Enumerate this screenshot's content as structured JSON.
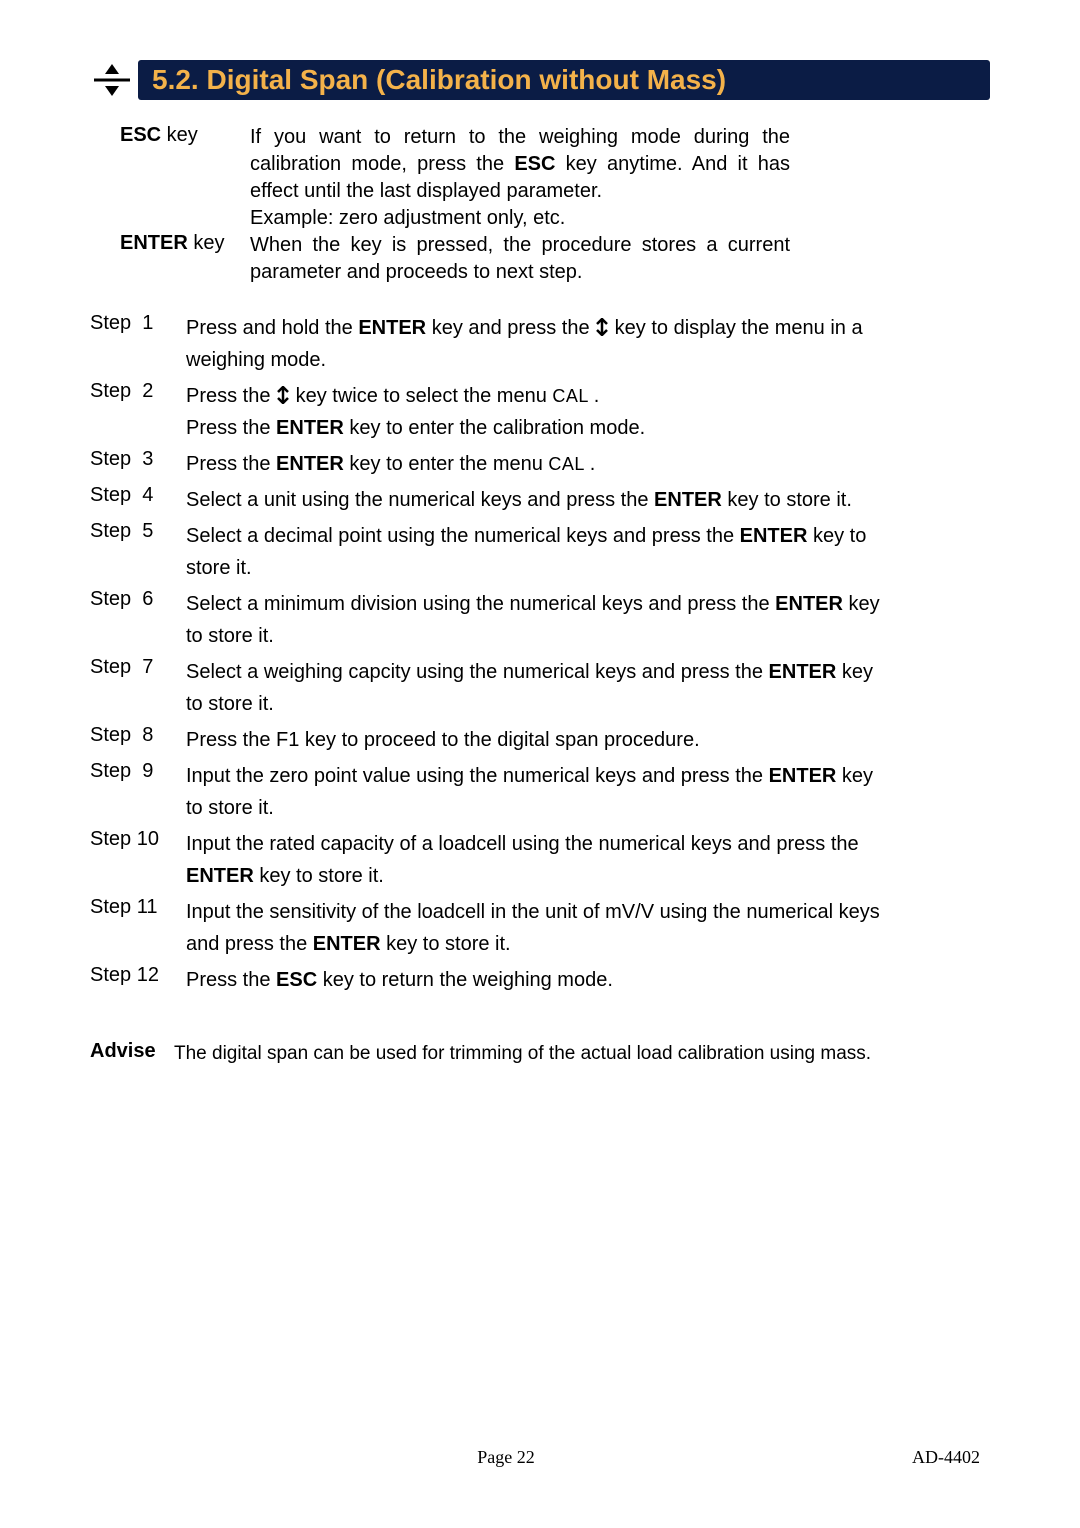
{
  "title": {
    "bg_color": "#0b1c45",
    "text_color": "#f4b24a",
    "text": "5.2. Digital Span (Calibration without Mass)"
  },
  "icon": {
    "stroke": "#000000",
    "fill": "#000000"
  },
  "keydefs": [
    {
      "label_prefix": "ESC",
      "label_suffix": " key",
      "body_parts": [
        {
          "t": "If you want to return to the weighing mode during the calibration mode, press the "
        },
        {
          "t": "ESC",
          "bold": true
        },
        {
          "t": " key anytime. And it has effect until the last displayed parameter."
        }
      ],
      "body_line2": "Example: zero adjustment only, etc."
    },
    {
      "label_prefix": "ENTER",
      "label_suffix": " key",
      "body_parts": [
        {
          "t": "When the key is pressed, the procedure stores a current parameter and proceeds to next step."
        }
      ]
    }
  ],
  "steps": [
    {
      "n": "Step  1",
      "parts": [
        {
          "t": "Press and hold the "
        },
        {
          "t": "ENTER",
          "bold": true
        },
        {
          "t": " key and press the "
        },
        {
          "arrow": true
        },
        {
          "t": " key to display the menu in a weighing mode."
        }
      ]
    },
    {
      "n": "Step  2",
      "parts": [
        {
          "t": "Press the "
        },
        {
          "arrow": true
        },
        {
          "t": " key twice to select the menu "
        },
        {
          "t": " CAL ",
          "cal": true
        },
        {
          "t": "."
        }
      ],
      "line2parts": [
        {
          "t": "Press the "
        },
        {
          "t": "ENTER",
          "bold": true
        },
        {
          "t": " key to enter the calibration mode."
        }
      ]
    },
    {
      "n": "Step  3",
      "parts": [
        {
          "t": "Press the "
        },
        {
          "t": "ENTER",
          "bold": true
        },
        {
          "t": " key to enter the menu "
        },
        {
          "t": " CAL ",
          "cal": true
        },
        {
          "t": "."
        }
      ]
    },
    {
      "n": "Step  4",
      "parts": [
        {
          "t": "Select a unit using the numerical keys and press the "
        },
        {
          "t": "ENTER",
          "bold": true
        },
        {
          "t": " key to store it."
        }
      ]
    },
    {
      "n": "Step  5",
      "parts": [
        {
          "t": "Select a decimal point using the numerical keys and press the "
        },
        {
          "t": "ENTER",
          "bold": true
        },
        {
          "t": " key to store it."
        }
      ]
    },
    {
      "n": "Step  6",
      "parts": [
        {
          "t": "Select a minimum division using the numerical keys and press the "
        },
        {
          "t": "ENTER",
          "bold": true
        },
        {
          "t": " key to store it."
        }
      ]
    },
    {
      "n": "Step  7",
      "parts": [
        {
          "t": "Select a weighing capcity using the numerical keys and press the "
        },
        {
          "t": "ENTER",
          "bold": true
        },
        {
          "t": " key to store it."
        }
      ]
    },
    {
      "n": "Step  8",
      "parts": [
        {
          "t": "Press the F1 key to proceed to the digital span procedure."
        }
      ]
    },
    {
      "n": "Step  9",
      "parts": [
        {
          "t": "Input the zero point value using the numerical keys and press the "
        },
        {
          "t": "ENTER",
          "bold": true
        },
        {
          "t": " key to store it."
        }
      ]
    },
    {
      "n": "Step 10",
      "parts": [
        {
          "t": "Input the rated capacity of a loadcell using the numerical keys and press the "
        },
        {
          "t": "ENTER",
          "bold": true
        },
        {
          "t": " key to store it."
        }
      ]
    },
    {
      "n": "Step 11",
      "parts": [
        {
          "t": "Input the sensitivity of the loadcell in the unit of mV/V using the numerical keys and press the "
        },
        {
          "t": "ENTER",
          "bold": true
        },
        {
          "t": " key to store it."
        }
      ]
    },
    {
      "n": "Step 12",
      "parts": [
        {
          "t": "Press the "
        },
        {
          "t": "ESC",
          "bold": true
        },
        {
          "t": " key to return the weighing mode."
        }
      ]
    }
  ],
  "advise": {
    "label": "Advise",
    "body": "The digital span can be used for trimming of the actual load calibration using mass."
  },
  "footer": {
    "page": "Page 22",
    "model": "AD-4402"
  }
}
